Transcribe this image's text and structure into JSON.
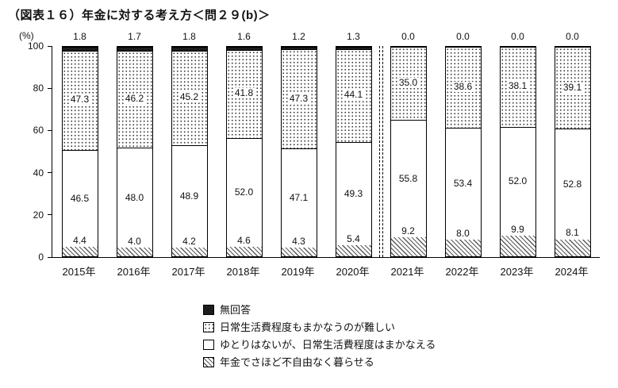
{
  "title": "（図表１６）年金に対する考え方＜問２９(b)＞",
  "chart_data": {
    "type": "bar",
    "stacked": true,
    "title": "（図表１６）年金に対する考え方＜問２９(b)＞",
    "xlabel": "",
    "ylabel": "(%)",
    "y_axis": {
      "min": 0,
      "max": 100,
      "ticks": [
        0,
        20,
        40,
        60,
        80,
        100
      ]
    },
    "grid": false,
    "legend_position": "bottom",
    "categories": [
      "2015年",
      "2016年",
      "2017年",
      "2018年",
      "2019年",
      "2020年",
      "2021年",
      "2022年",
      "2023年",
      "2024年"
    ],
    "series": [
      {
        "name": "年金でさほど不自由なく暮らせる",
        "pattern": "hatch",
        "values": [
          4.4,
          4.0,
          4.2,
          4.6,
          4.3,
          5.4,
          9.2,
          8.0,
          9.9,
          8.1
        ]
      },
      {
        "name": "ゆとりはないが、日常生活費程度はまかなえる",
        "pattern": "white",
        "values": [
          46.5,
          48.0,
          48.9,
          52.0,
          47.1,
          49.3,
          55.8,
          53.4,
          52.0,
          52.8
        ]
      },
      {
        "name": "日常生活費程度もまかなうのが難しい",
        "pattern": "dots",
        "values": [
          47.3,
          46.2,
          45.2,
          41.8,
          47.3,
          44.1,
          35.0,
          38.6,
          38.1,
          39.1
        ]
      },
      {
        "name": "無回答",
        "pattern": "solid",
        "values": [
          1.8,
          1.7,
          1.8,
          1.6,
          1.2,
          1.3,
          0.0,
          0.0,
          0.0,
          0.0
        ]
      }
    ],
    "break_after_index": 5,
    "legend": [
      {
        "label": "無回答",
        "pattern": "solid"
      },
      {
        "label": "日常生活費程度もまかなうのが難しい",
        "pattern": "dots"
      },
      {
        "label": "ゆとりはないが、日常生活費程度はまかなえる",
        "pattern": "white"
      },
      {
        "label": "年金でさほど不自由なく暮らせる",
        "pattern": "hatch"
      }
    ]
  }
}
